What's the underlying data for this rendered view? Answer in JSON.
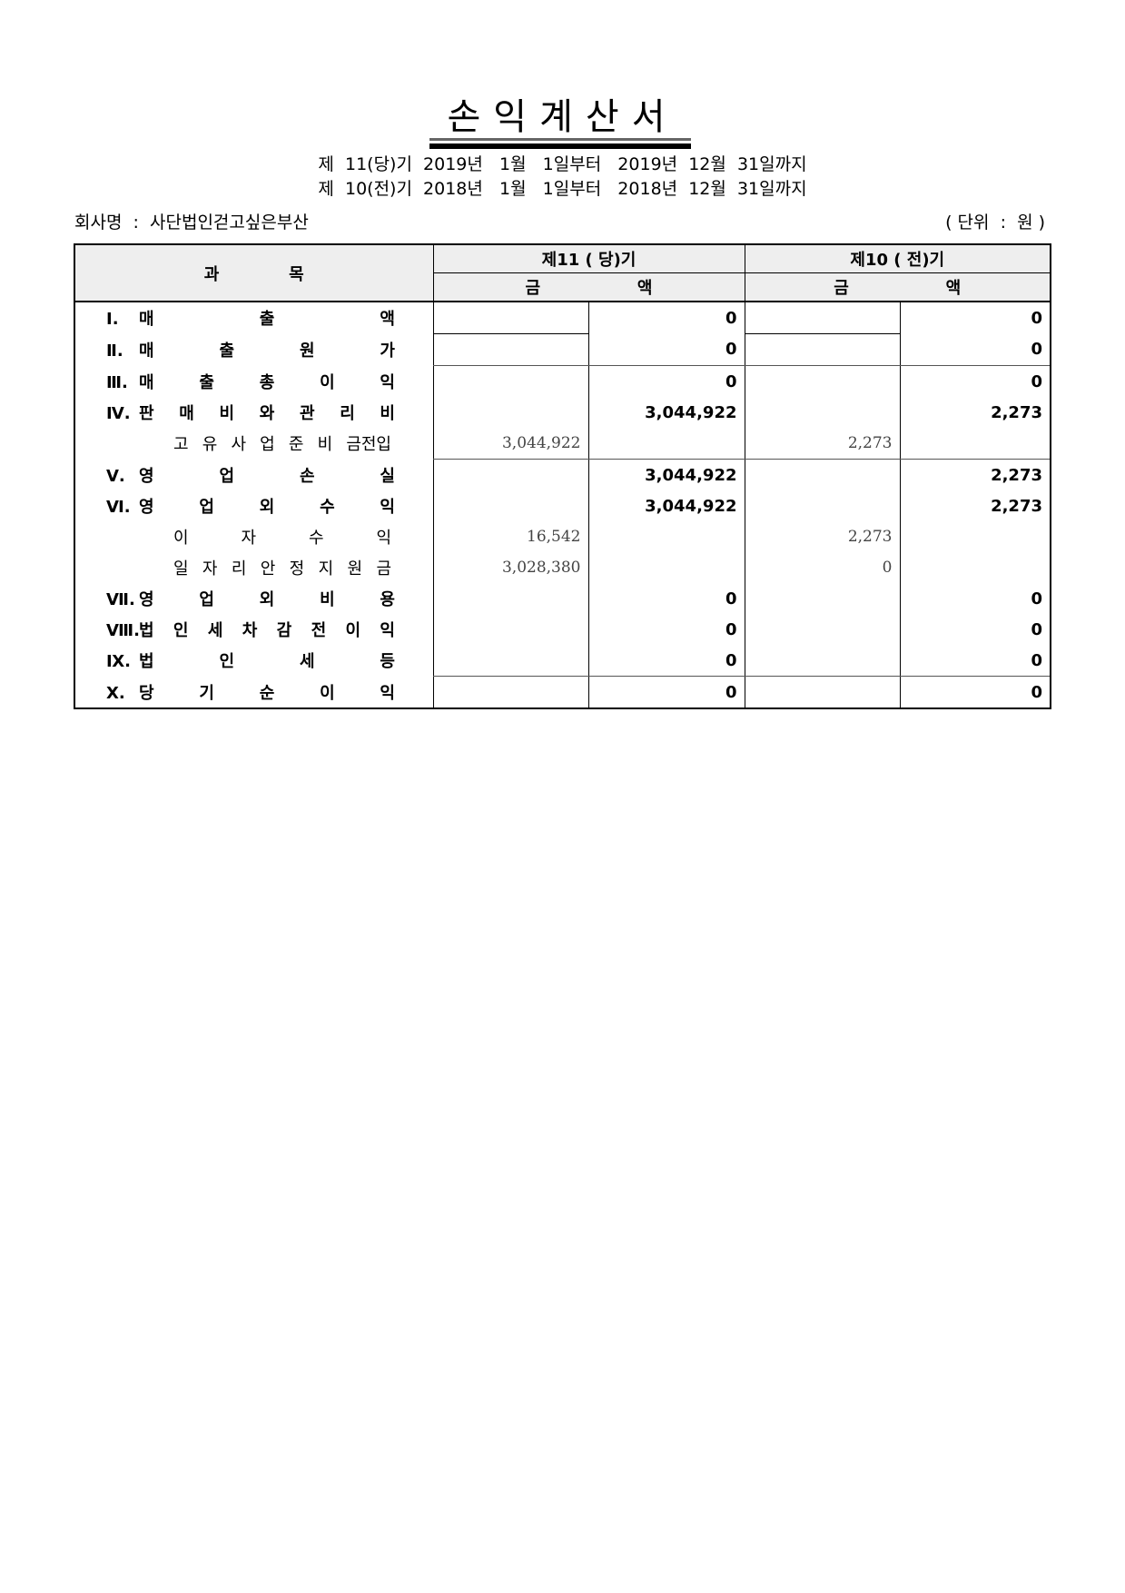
{
  "title": "손익계산서",
  "periods": [
    "제  11(당)기  2019년   1월   1일부터   2019년  12월  31일까지",
    "제  10(전)기  2018년   1월   1일부터   2018년  12월  31일까지"
  ],
  "company": "회사명  :  사단법인걷고싶은부산",
  "unit": "( 단위  :  원 )",
  "header": {
    "subject": "과 목",
    "current": "제11 ( 당)기",
    "previous": "제10 ( 전)기",
    "amount": "금 액"
  },
  "rows": [
    {
      "rn": "Ⅰ.",
      "label": "매 출 액",
      "cur_sub": "",
      "cur": "0",
      "prev_sub": "",
      "prev": "0"
    },
    {
      "rn": "Ⅱ.",
      "label": "매 출 원 가",
      "cur_sub": "",
      "cur": "0",
      "prev_sub": "",
      "prev": "0"
    },
    {
      "rn": "Ⅲ.",
      "label": "매 출 총 이 익",
      "cur_sub": "",
      "cur": "0",
      "prev_sub": "",
      "prev": "0"
    },
    {
      "rn": "Ⅳ.",
      "label": "판 매 비 와 관 리 비",
      "cur_sub": "",
      "cur": "3,044,922",
      "prev_sub": "",
      "prev": "2,273"
    },
    {
      "rn": "",
      "label": "고 유 사 업 준 비 금전입",
      "cur_sub": "3,044,922",
      "cur": "",
      "prev_sub": "2,273",
      "prev": ""
    },
    {
      "rn": "Ⅴ.",
      "label": "영 업 손 실",
      "cur_sub": "",
      "cur": "3,044,922",
      "prev_sub": "",
      "prev": "2,273"
    },
    {
      "rn": "Ⅵ.",
      "label": "영 업 외 수 익",
      "cur_sub": "",
      "cur": "3,044,922",
      "prev_sub": "",
      "prev": "2,273"
    },
    {
      "rn": "",
      "label": "이 자 수 익",
      "cur_sub": "16,542",
      "cur": "",
      "prev_sub": "2,273",
      "prev": ""
    },
    {
      "rn": "",
      "label": "일 자 리 안 정 지 원 금",
      "cur_sub": "3,028,380",
      "cur": "",
      "prev_sub": "0",
      "prev": ""
    },
    {
      "rn": "Ⅶ.",
      "label": "영 업 외 비 용",
      "cur_sub": "",
      "cur": "0",
      "prev_sub": "",
      "prev": "0"
    },
    {
      "rn": "Ⅷ.",
      "label": "법 인 세 차 감 전 이 익",
      "cur_sub": "",
      "cur": "0",
      "prev_sub": "",
      "prev": "0"
    },
    {
      "rn": "Ⅸ.",
      "label": "법 인 세 등",
      "cur_sub": "",
      "cur": "0",
      "prev_sub": "",
      "prev": "0"
    },
    {
      "rn": "Ⅹ.",
      "label": "당 기 순 이 익",
      "cur_sub": "",
      "cur": "0",
      "prev_sub": "",
      "prev": "0"
    }
  ]
}
